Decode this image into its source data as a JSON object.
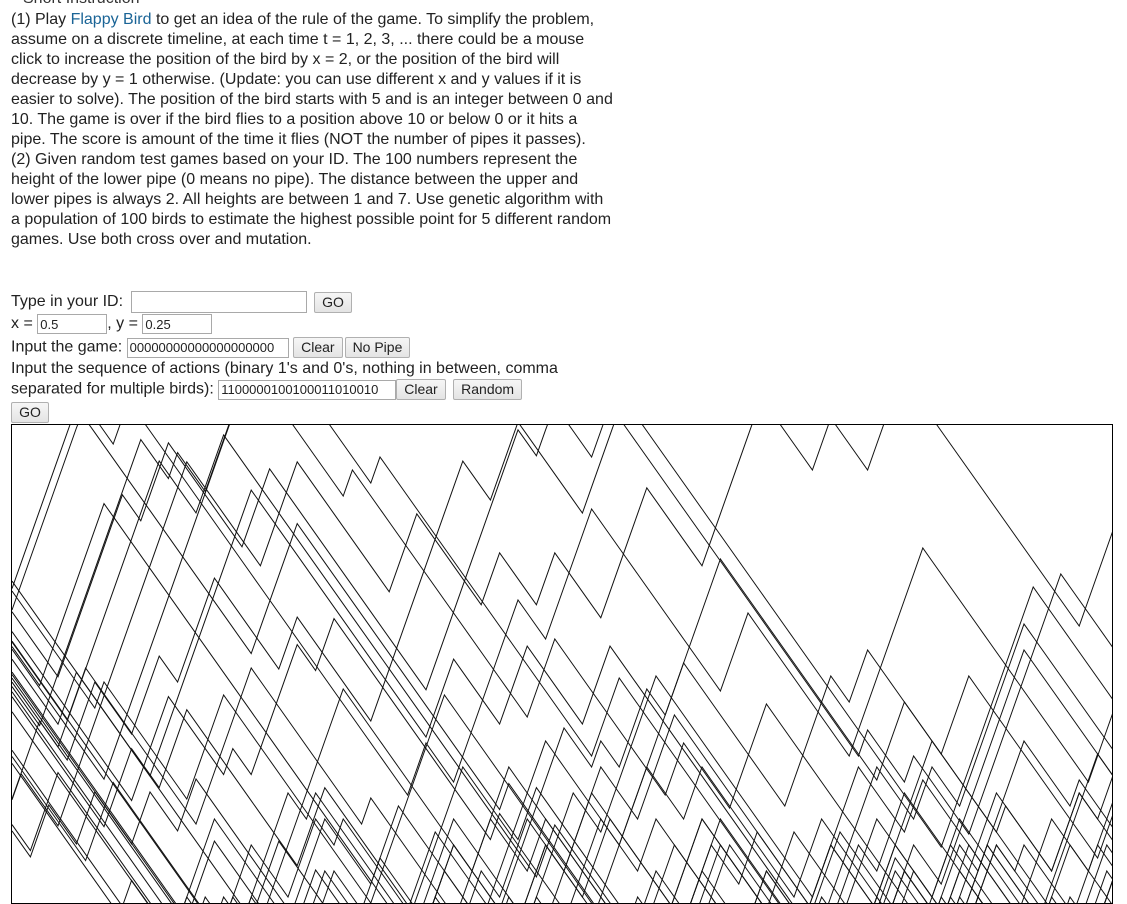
{
  "section_title": "Short Instruction",
  "instructions": {
    "p1_before_link": "(1) Play ",
    "p1_link": "Flappy Bird",
    "p1_after_link": " to get an idea of the rule of the game. To simplify the problem, assume on a discrete timeline, at each time t = 1, 2, 3, ... there could be a mouse click to increase the position of the bird by x = 2, or the position of the bird will decrease by y = 1 otherwise. (Update: you can use different x and y values if it is easier to solve). The position of the bird starts with 5 and is an integer between 0 and 10. The game is over if the bird flies to a position above 10 or below 0 or it hits a pipe. The score is amount of the time it flies (NOT the number of pipes it passes).",
    "p2": "(2) Given random test games based on your ID. The 100 numbers represent the height of the lower pipe (0 means no pipe). The distance between the upper and lower pipes is always 2. All heights are between 1 and 7. Use genetic algorithm with a population of 100 birds to estimate the highest possible point for 5 different random games. Use both cross over and mutation."
  },
  "id_row": {
    "label": "Type in your ID:",
    "value": "",
    "go_label": "GO"
  },
  "xy_row": {
    "x_label": "x =",
    "x_value": "0.5",
    "y_label": ", y =",
    "y_value": "0.25"
  },
  "game_row": {
    "label": "Input the game:",
    "value": "00000000000000000000",
    "clear_label": "Clear",
    "nopipe_label": "No Pipe"
  },
  "actions_row": {
    "label": "Input the sequence of actions (binary 1's and 0's, nothing in between, comma separated for multiple birds):",
    "value": "1100000100100011010010",
    "clear_label": "Clear",
    "random_label": "Random",
    "go_label": "GO"
  }
}
